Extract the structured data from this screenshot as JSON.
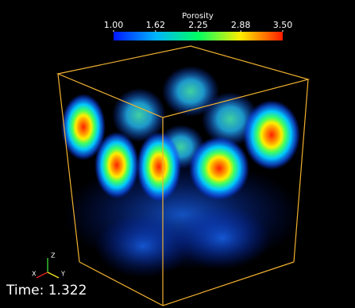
{
  "colorbar": {
    "title": "Porosity",
    "range": [
      1.0,
      3.5
    ],
    "ticks": [
      {
        "value": 1.0,
        "label": "1.00"
      },
      {
        "value": 1.62,
        "label": "1.62"
      },
      {
        "value": 2.25,
        "label": "2.25"
      },
      {
        "value": 2.88,
        "label": "2.88"
      },
      {
        "value": 3.5,
        "label": "3.50"
      }
    ]
  },
  "time_label": "Time: 1.322",
  "axes": {
    "x": "X",
    "y": "Y",
    "z": "Z"
  }
}
